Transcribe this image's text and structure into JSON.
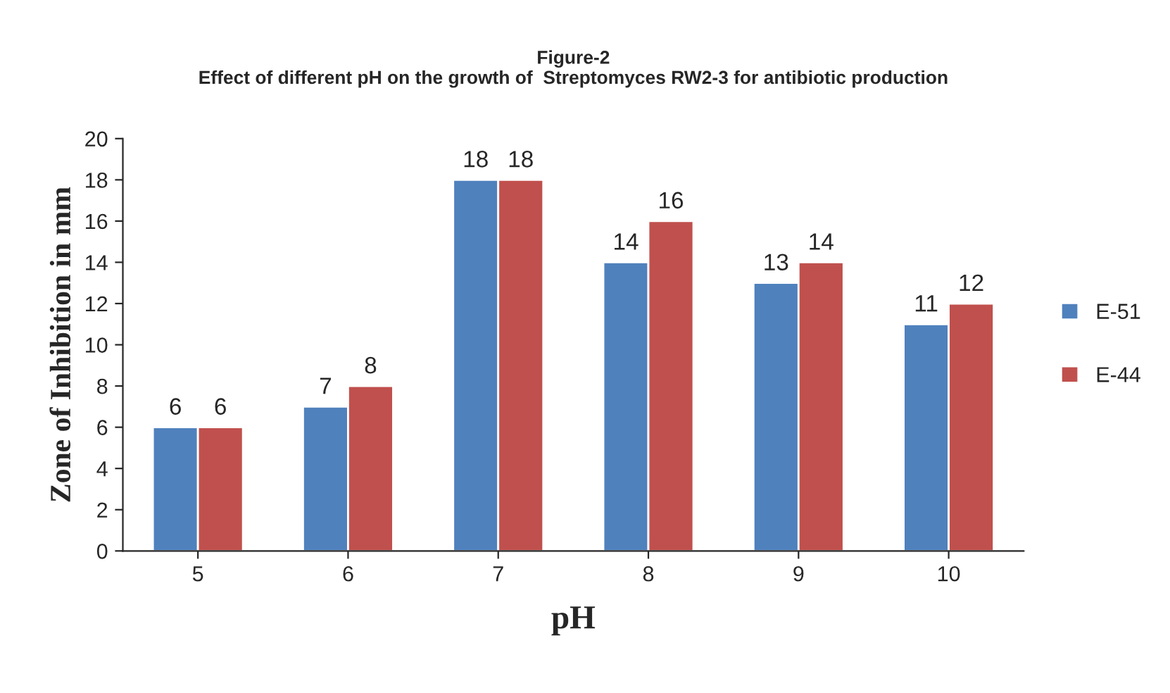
{
  "chart_data": {
    "type": "bar",
    "title": "Figure-2\nEffect of different pH on the growth of  Streptomyces RW2-3 for antibiotic production",
    "xlabel": "pH",
    "ylabel": "Zone of Inhibition in mm",
    "categories": [
      "5",
      "6",
      "7",
      "8",
      "9",
      "10"
    ],
    "series": [
      {
        "name": "E-51",
        "color": "#4f81bd",
        "values": [
          6,
          7,
          18,
          14,
          13,
          11
        ]
      },
      {
        "name": "E-44",
        "color": "#c0504d",
        "values": [
          6,
          8,
          18,
          16,
          14,
          12
        ]
      }
    ],
    "ylim": [
      0,
      20
    ],
    "yticks": [
      0,
      2,
      4,
      6,
      8,
      10,
      12,
      14,
      16,
      18,
      20
    ],
    "grid": false,
    "legend": "right",
    "data_labels": true
  }
}
